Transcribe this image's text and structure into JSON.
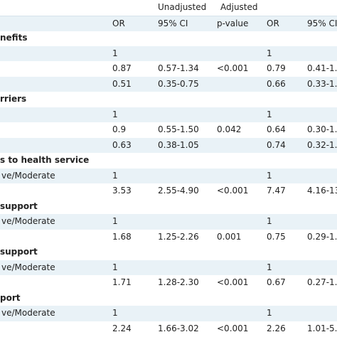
{
  "table": {
    "group_headers": [
      "Unadjusted",
      "Adjusted"
    ],
    "columns": [
      "OR",
      "95% CI",
      "p-value",
      "OR",
      "95% CI"
    ],
    "rows": [
      {
        "label": "nefits",
        "section": true
      },
      {
        "cells": [
          null,
          "1",
          null,
          null,
          "1",
          null
        ]
      },
      {
        "cells": [
          null,
          "0.87",
          "0.57-1.34",
          "<0.001",
          "0.79",
          "0.41-1."
        ]
      },
      {
        "cells": [
          null,
          "0.51",
          "0.35-0.75",
          null,
          "0.66",
          "0.33-1."
        ]
      },
      {
        "label": "rriers",
        "section": true
      },
      {
        "cells": [
          null,
          "1",
          null,
          null,
          "1",
          null
        ]
      },
      {
        "cells": [
          null,
          "0.9",
          "0.55-1.50",
          "0.042",
          "0.64",
          "0.30-1."
        ]
      },
      {
        "cells": [
          null,
          "0.63",
          "0.38-1.05",
          null,
          "0.74",
          "0.32-1."
        ]
      },
      {
        "label": "s to health service",
        "section": true
      },
      {
        "cells": [
          "ve/Moderate",
          "1",
          null,
          null,
          "1",
          null
        ]
      },
      {
        "cells": [
          null,
          "3.53",
          "2.55-4.90",
          "<0.001",
          "7.47",
          "4.16-13"
        ]
      },
      {
        "label": "support",
        "section": true
      },
      {
        "cells": [
          "ve/Moderate",
          "1",
          null,
          null,
          "1",
          null
        ]
      },
      {
        "cells": [
          null,
          "1.68",
          "1.25-2.26",
          "0.001",
          "0.75",
          "0.29-1."
        ]
      },
      {
        "label": "support",
        "section": true
      },
      {
        "cells": [
          "ve/Moderate",
          "1",
          null,
          null,
          "1",
          null
        ]
      },
      {
        "cells": [
          null,
          "1.71",
          "1.28-2.30",
          "<0.001",
          "0.67",
          "0.27-1."
        ]
      },
      {
        "label": "port",
        "section": true
      },
      {
        "cells": [
          "ve/Moderate",
          "1",
          null,
          null,
          "1",
          null
        ]
      },
      {
        "cells": [
          null,
          "2.24",
          "1.66-3.02",
          "<0.001",
          "2.26",
          "1.01-5."
        ]
      }
    ]
  }
}
